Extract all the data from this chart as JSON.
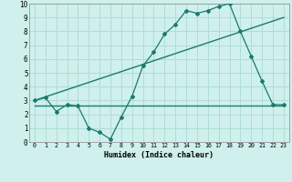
{
  "line1_x": [
    0,
    1,
    2,
    3,
    4,
    5,
    6,
    7,
    8,
    9,
    10,
    11,
    12,
    13,
    14,
    15,
    16,
    17,
    18,
    19,
    20,
    21,
    22,
    23
  ],
  "line1_y": [
    3.0,
    3.2,
    2.2,
    2.7,
    2.6,
    1.0,
    0.7,
    0.2,
    1.8,
    3.3,
    5.5,
    6.5,
    7.8,
    8.5,
    9.5,
    9.3,
    9.5,
    9.8,
    10.0,
    8.0,
    6.2,
    4.4,
    2.7,
    2.7
  ],
  "line2_x": [
    0,
    23
  ],
  "line2_y": [
    3.0,
    9.0
  ],
  "line3_x": [
    0,
    23
  ],
  "line3_y": [
    2.6,
    2.6
  ],
  "color": "#1a7a6e",
  "bg_color": "#cff0ec",
  "grid_color": "#b0ddd8",
  "xlabel": "Humidex (Indice chaleur)",
  "xlim": [
    -0.5,
    23.5
  ],
  "ylim": [
    0,
    10
  ],
  "xticks": [
    0,
    1,
    2,
    3,
    4,
    5,
    6,
    7,
    8,
    9,
    10,
    11,
    12,
    13,
    14,
    15,
    16,
    17,
    18,
    19,
    20,
    21,
    22,
    23
  ],
  "yticks": [
    0,
    1,
    2,
    3,
    4,
    5,
    6,
    7,
    8,
    9,
    10
  ]
}
